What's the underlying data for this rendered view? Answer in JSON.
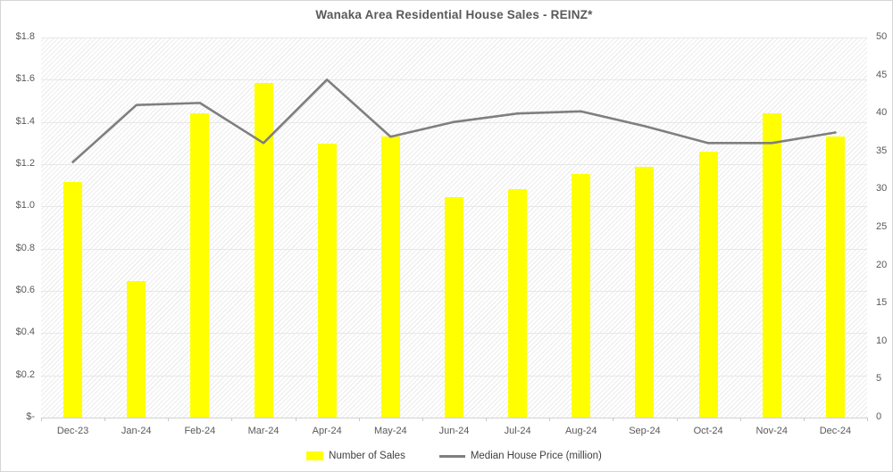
{
  "title": "Wanaka Area Residential House Sales - REINZ*",
  "legend": {
    "bar_label": "Number of Sales",
    "line_label": "Median House Price (million)"
  },
  "colors": {
    "bar": "#ffff00",
    "line": "#7f7f7f",
    "text": "#595959",
    "grid": "#e7e7e7",
    "axis_line": "#d2d2d2"
  },
  "chart_data": {
    "type": "bar",
    "subtype": "combo-bar-line",
    "title": "Wanaka Area Residential House Sales - REINZ*",
    "categories": [
      "Dec-23",
      "Jan-24",
      "Feb-24",
      "Mar-24",
      "Apr-24",
      "May-24",
      "Jun-24",
      "Jul-24",
      "Aug-24",
      "Sep-24",
      "Oct-24",
      "Nov-24",
      "Dec-24"
    ],
    "series": [
      {
        "name": "Number of Sales",
        "type": "bar",
        "axis": "right",
        "color": "#ffff00",
        "values": [
          31,
          18,
          40,
          44,
          36,
          37,
          29,
          30,
          32,
          33,
          35,
          40,
          37
        ]
      },
      {
        "name": "Median House Price (million)",
        "type": "line",
        "axis": "left",
        "color": "#7f7f7f",
        "values": [
          1.21,
          1.48,
          1.49,
          1.3,
          1.6,
          1.33,
          1.4,
          1.44,
          1.45,
          1.38,
          1.3,
          1.3,
          1.35
        ]
      }
    ],
    "left_axis": {
      "min": 0,
      "max": 1.8,
      "step": 0.2,
      "ticks": [
        {
          "label": "$1.8",
          "value": 1.8
        },
        {
          "label": "$1.6",
          "value": 1.6
        },
        {
          "label": "$1.4",
          "value": 1.4
        },
        {
          "label": "$1.2",
          "value": 1.2
        },
        {
          "label": "$1.0",
          "value": 1.0
        },
        {
          "label": "$0.8",
          "value": 0.8
        },
        {
          "label": "$0.6",
          "value": 0.6
        },
        {
          "label": "$0.4",
          "value": 0.4
        },
        {
          "label": "$0.2",
          "value": 0.2
        },
        {
          "label": "$-",
          "value": 0.0
        }
      ]
    },
    "right_axis": {
      "min": 0,
      "max": 50,
      "step": 5,
      "ticks": [
        {
          "label": "50",
          "value": 50
        },
        {
          "label": "45",
          "value": 45
        },
        {
          "label": "40",
          "value": 40
        },
        {
          "label": "35",
          "value": 35
        },
        {
          "label": "30",
          "value": 30
        },
        {
          "label": "25",
          "value": 25
        },
        {
          "label": "20",
          "value": 20
        },
        {
          "label": "15",
          "value": 15
        },
        {
          "label": "10",
          "value": 10
        },
        {
          "label": "5",
          "value": 5
        },
        {
          "label": "0",
          "value": 0
        }
      ]
    },
    "grid": true,
    "legend_position": "bottom",
    "plot_background": "diagonal-hatch"
  }
}
